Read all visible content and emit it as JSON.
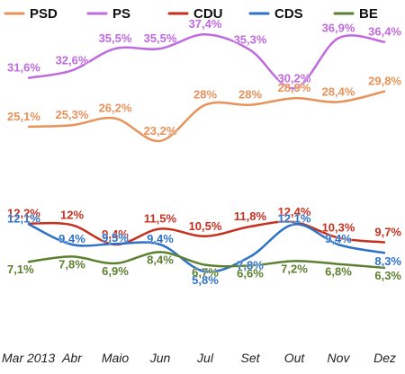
{
  "chart_data": {
    "type": "line",
    "title": "",
    "xlabel": "",
    "ylabel": "",
    "categories": [
      "Mar 2013",
      "Abr",
      "Maio",
      "Jun",
      "Jul",
      "Set",
      "Out",
      "Nov",
      "Dez"
    ],
    "ylim": [
      3,
      40
    ],
    "grid": false,
    "legend_position": "top",
    "series": [
      {
        "name": "PSD",
        "color": "#E8925A",
        "values": [
          25.1,
          25.3,
          26.2,
          23.2,
          28.0,
          28.0,
          28.9,
          28.4,
          29.8
        ],
        "labels": [
          "25,1%",
          "25,3%",
          "26,2%",
          "23,2%",
          "28%",
          "28%",
          "28,9%",
          "28,4%",
          "29,8%"
        ]
      },
      {
        "name": "PS",
        "color": "#C06AE0",
        "values": [
          31.6,
          32.6,
          35.5,
          35.5,
          37.4,
          35.3,
          30.2,
          36.9,
          36.4
        ],
        "labels": [
          "31,6%",
          "32,6%",
          "35,5%",
          "35,5%",
          "37,4%",
          "35,3%",
          "30,2%",
          "36,9%",
          "36,4%"
        ]
      },
      {
        "name": "CDU",
        "color": "#C8301E",
        "values": [
          12.2,
          12.0,
          9.4,
          11.5,
          10.5,
          11.8,
          12.4,
          10.3,
          9.7
        ],
        "labels": [
          "12,2%",
          "12%",
          "9,4%",
          "11,5%",
          "10,5%",
          "11,8%",
          "12,4%",
          "10,3%",
          "9,7%"
        ]
      },
      {
        "name": "CDS",
        "color": "#2E72C8",
        "values": [
          12.1,
          9.4,
          9.5,
          9.4,
          5.8,
          7.8,
          12.1,
          9.4,
          8.3
        ],
        "labels": [
          "12,1%",
          "9,4%",
          "9,5%",
          "9,4%",
          "5,8%",
          "7,8%",
          "12,1%",
          "9,4%",
          "8,3%"
        ]
      },
      {
        "name": "BE",
        "color": "#5C8030",
        "values": [
          7.1,
          7.8,
          6.9,
          8.4,
          6.7,
          6.6,
          7.2,
          6.8,
          6.3
        ],
        "labels": [
          "7,1%",
          "7,8%",
          "6,9%",
          "8,4%",
          "6,7%",
          "6,6%",
          "7,2%",
          "6,8%",
          "6,3%"
        ]
      }
    ]
  }
}
